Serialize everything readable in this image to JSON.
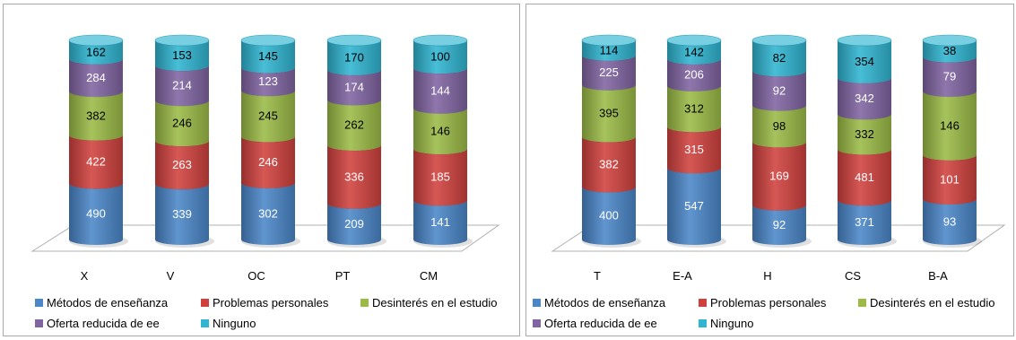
{
  "chart_data": [
    {
      "type": "bar",
      "stacked": true,
      "style": "3d-cylinder",
      "categories": [
        "X",
        "V",
        "OC",
        "PT",
        "CM"
      ],
      "series": [
        {
          "name": "Métodos de enseñanza",
          "color": "#4a86c8",
          "values": [
            490,
            339,
            302,
            209,
            141
          ]
        },
        {
          "name": "Problemas personales",
          "color": "#d0413e",
          "values": [
            422,
            263,
            246,
            336,
            185
          ]
        },
        {
          "name": "Desinterés en el estudio",
          "color": "#9bbb46",
          "values": [
            382,
            246,
            245,
            262,
            146
          ]
        },
        {
          "name": "Oferta reducida de ee",
          "color": "#8064a2",
          "values": [
            284,
            214,
            123,
            174,
            144
          ]
        },
        {
          "name": "Ninguno",
          "color": "#2fb5d1",
          "values": [
            162,
            153,
            145,
            170,
            100
          ]
        }
      ],
      "legend_position": "bottom",
      "grid": false
    },
    {
      "type": "bar",
      "stacked": true,
      "style": "3d-cylinder",
      "categories": [
        "T",
        "E-A",
        "H",
        "CS",
        "B-A"
      ],
      "series": [
        {
          "name": "Métodos de enseñanza",
          "color": "#4a86c8",
          "values": [
            400,
            547,
            92,
            371,
            93
          ]
        },
        {
          "name": "Problemas personales",
          "color": "#d0413e",
          "values": [
            382,
            315,
            169,
            481,
            101
          ]
        },
        {
          "name": "Desinterés en el estudio",
          "color": "#9bbb46",
          "values": [
            395,
            312,
            98,
            332,
            146
          ]
        },
        {
          "name": "Oferta reducida de ee",
          "color": "#8064a2",
          "values": [
            225,
            206,
            92,
            342,
            79
          ]
        },
        {
          "name": "Ninguno",
          "color": "#2fb5d1",
          "values": [
            114,
            142,
            82,
            354,
            38
          ]
        }
      ],
      "legend_position": "bottom",
      "grid": false
    }
  ]
}
